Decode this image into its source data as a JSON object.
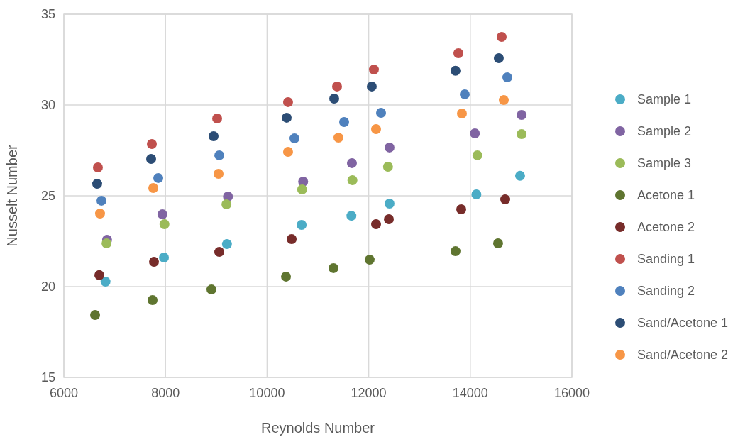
{
  "chart_data": {
    "type": "scatter",
    "xlabel": "Reynolds Number",
    "ylabel": "Nusselt Number",
    "xlim": [
      6000,
      16000
    ],
    "xticks": [
      6000,
      8000,
      10000,
      12000,
      14000,
      16000
    ],
    "ylim": [
      15,
      35
    ],
    "yticks": [
      15,
      20,
      25,
      30,
      35
    ],
    "grid": true,
    "legend": "right",
    "marker": "circle",
    "series": [
      {
        "name": "Sample 1",
        "color": "#4bacc6",
        "x": [
          6820,
          7970,
          9210,
          10680,
          11660,
          12410,
          14120,
          14980
        ],
        "values": [
          20.27,
          21.6,
          22.34,
          23.4,
          23.9,
          24.57,
          25.08,
          26.1
        ]
      },
      {
        "name": "Sample 2",
        "color": "#8064a2",
        "x": [
          6850,
          7940,
          9230,
          10710,
          11670,
          12410,
          14090,
          15010
        ],
        "values": [
          22.58,
          23.98,
          24.96,
          25.78,
          26.8,
          27.66,
          28.44,
          29.45
        ]
      },
      {
        "name": "Sample 3",
        "color": "#9bbb59",
        "x": [
          6840,
          7980,
          9200,
          10690,
          11680,
          12380,
          14140,
          15010
        ],
        "values": [
          22.38,
          23.44,
          24.53,
          25.35,
          25.86,
          26.6,
          27.23,
          28.4
        ]
      },
      {
        "name": "Acetone 1",
        "color": "#5f7530",
        "x": [
          6615,
          7746,
          8905,
          10372,
          11307,
          12019,
          13709,
          14547
        ],
        "values": [
          18.44,
          19.26,
          19.84,
          20.55,
          21.02,
          21.48,
          21.95,
          22.38
        ]
      },
      {
        "name": "Acetone 2",
        "color": "#772c2a",
        "x": [
          6698,
          7774,
          9059,
          10484,
          12145,
          12397,
          13821,
          14687
        ],
        "values": [
          20.63,
          21.37,
          21.91,
          22.62,
          23.44,
          23.71,
          24.26,
          24.8
        ]
      },
      {
        "name": "Sanding 1",
        "color": "#c0504d",
        "x": [
          6670,
          7732,
          9017,
          10413,
          11377,
          12103,
          13765,
          14617
        ],
        "values": [
          26.56,
          27.85,
          29.26,
          30.16,
          31.02,
          31.95,
          32.85,
          33.75
        ]
      },
      {
        "name": "Sanding 2",
        "color": "#4f81bd",
        "x": [
          6740,
          7858,
          9059,
          10539,
          11517,
          12243,
          13891,
          14729
        ],
        "values": [
          24.73,
          25.98,
          27.23,
          28.16,
          29.06,
          29.57,
          30.59,
          31.52
        ]
      },
      {
        "name": "Sand/Acetone 1",
        "color": "#2c4d75",
        "x": [
          6656,
          7718,
          8947,
          10386,
          11321,
          12061,
          13709,
          14561
        ],
        "values": [
          25.66,
          27.03,
          28.28,
          29.3,
          30.35,
          31.02,
          31.88,
          32.58
        ]
      },
      {
        "name": "Sand/Acetone 2",
        "color": "#f79646",
        "x": [
          6712,
          7760,
          9045,
          10413,
          11405,
          12145,
          13835,
          14659
        ],
        "values": [
          24.02,
          25.43,
          26.21,
          27.42,
          28.2,
          28.67,
          29.53,
          30.27
        ]
      }
    ]
  }
}
